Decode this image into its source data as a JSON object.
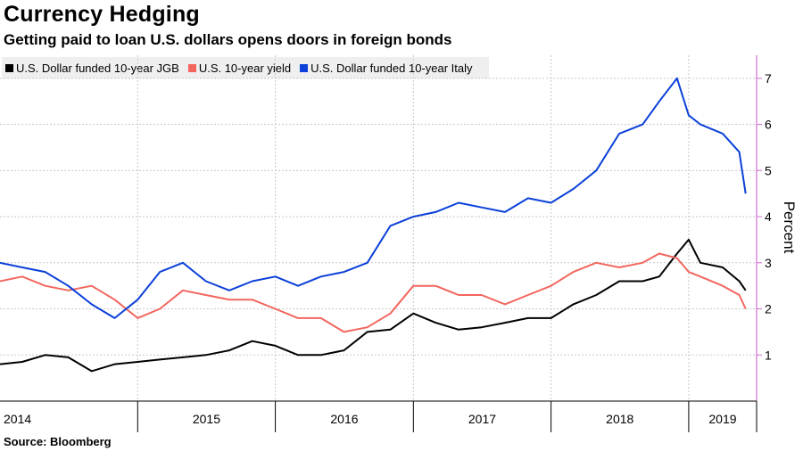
{
  "title": "Currency Hedging",
  "subtitle": "Getting paid to loan U.S. dollars opens doors in foreign bonds",
  "source": "Source: Bloomberg",
  "colors": {
    "jgb": "#000000",
    "us10": "#f2665e",
    "italy": "#0b40d9",
    "axis": "#d36bd6",
    "grid": "#c8c8c8"
  },
  "chart_data": {
    "type": "line",
    "ylabel": "Percent",
    "ylim": [
      0,
      7.5
    ],
    "yticks": [
      1,
      2,
      3,
      4,
      5,
      6,
      7
    ],
    "xlim": [
      "2014-01-01",
      "2019-06-30"
    ],
    "year_labels": [
      "2014",
      "2015",
      "2016",
      "2017",
      "2018",
      "2019"
    ],
    "grid": true,
    "legend_position": "top-left",
    "series": [
      {
        "name": "U.S. Dollar funded 10-year JGB",
        "color": "#000000",
        "x": [
          "2014-01-01",
          "2014-03-01",
          "2014-05-01",
          "2014-07-01",
          "2014-09-01",
          "2014-11-01",
          "2015-01-01",
          "2015-03-01",
          "2015-05-01",
          "2015-07-01",
          "2015-09-01",
          "2015-11-01",
          "2016-01-01",
          "2016-03-01",
          "2016-05-01",
          "2016-07-01",
          "2016-09-01",
          "2016-11-01",
          "2017-01-01",
          "2017-03-01",
          "2017-05-01",
          "2017-07-01",
          "2017-09-01",
          "2017-11-01",
          "2018-01-01",
          "2018-03-01",
          "2018-05-01",
          "2018-07-01",
          "2018-09-01",
          "2018-10-15",
          "2018-12-01",
          "2019-01-01",
          "2019-02-01",
          "2019-04-01",
          "2019-05-15",
          "2019-06-01"
        ],
        "y": [
          0.8,
          0.85,
          1.0,
          0.95,
          0.65,
          0.8,
          0.85,
          0.9,
          0.95,
          1.0,
          1.1,
          1.3,
          1.2,
          1.0,
          1.0,
          1.1,
          1.5,
          1.55,
          1.9,
          1.7,
          1.55,
          1.6,
          1.7,
          1.8,
          1.8,
          2.1,
          2.3,
          2.6,
          2.6,
          2.7,
          3.2,
          3.5,
          3.0,
          2.9,
          2.6,
          2.4
        ]
      },
      {
        "name": "U.S. 10-year yield",
        "color": "#f2665e",
        "x": [
          "2014-01-01",
          "2014-03-01",
          "2014-05-01",
          "2014-07-01",
          "2014-09-01",
          "2014-11-01",
          "2015-01-01",
          "2015-03-01",
          "2015-05-01",
          "2015-07-01",
          "2015-09-01",
          "2015-11-01",
          "2016-01-01",
          "2016-03-01",
          "2016-05-01",
          "2016-07-01",
          "2016-09-01",
          "2016-11-01",
          "2017-01-01",
          "2017-03-01",
          "2017-05-01",
          "2017-07-01",
          "2017-09-01",
          "2017-11-01",
          "2018-01-01",
          "2018-03-01",
          "2018-05-01",
          "2018-07-01",
          "2018-09-01",
          "2018-10-15",
          "2018-12-01",
          "2019-01-01",
          "2019-02-01",
          "2019-04-01",
          "2019-05-15",
          "2019-06-01"
        ],
        "y": [
          2.6,
          2.7,
          2.5,
          2.4,
          2.5,
          2.2,
          1.8,
          2.0,
          2.4,
          2.3,
          2.2,
          2.2,
          2.0,
          1.8,
          1.8,
          1.5,
          1.6,
          1.9,
          2.5,
          2.5,
          2.3,
          2.3,
          2.1,
          2.3,
          2.5,
          2.8,
          3.0,
          2.9,
          3.0,
          3.2,
          3.1,
          2.8,
          2.7,
          2.5,
          2.3,
          2.0
        ]
      },
      {
        "name": "U.S. Dollar funded 10-year Italy",
        "color": "#0b40d9",
        "x": [
          "2014-01-01",
          "2014-03-01",
          "2014-05-01",
          "2014-07-01",
          "2014-09-01",
          "2014-11-01",
          "2015-01-01",
          "2015-03-01",
          "2015-05-01",
          "2015-07-01",
          "2015-09-01",
          "2015-11-01",
          "2016-01-01",
          "2016-03-01",
          "2016-05-01",
          "2016-07-01",
          "2016-09-01",
          "2016-11-01",
          "2017-01-01",
          "2017-03-01",
          "2017-05-01",
          "2017-07-01",
          "2017-09-01",
          "2017-11-01",
          "2018-01-01",
          "2018-03-01",
          "2018-05-01",
          "2018-07-01",
          "2018-09-01",
          "2018-10-15",
          "2018-12-01",
          "2019-01-01",
          "2019-02-01",
          "2019-04-01",
          "2019-05-15",
          "2019-06-01"
        ],
        "y": [
          3.0,
          2.9,
          2.8,
          2.5,
          2.1,
          1.8,
          2.2,
          2.8,
          3.0,
          2.6,
          2.4,
          2.6,
          2.7,
          2.5,
          2.7,
          2.8,
          3.0,
          3.8,
          4.0,
          4.1,
          4.3,
          4.2,
          4.1,
          4.4,
          4.3,
          4.6,
          5.0,
          5.8,
          6.0,
          6.5,
          7.0,
          6.2,
          6.0,
          5.8,
          5.4,
          4.5
        ]
      }
    ]
  }
}
